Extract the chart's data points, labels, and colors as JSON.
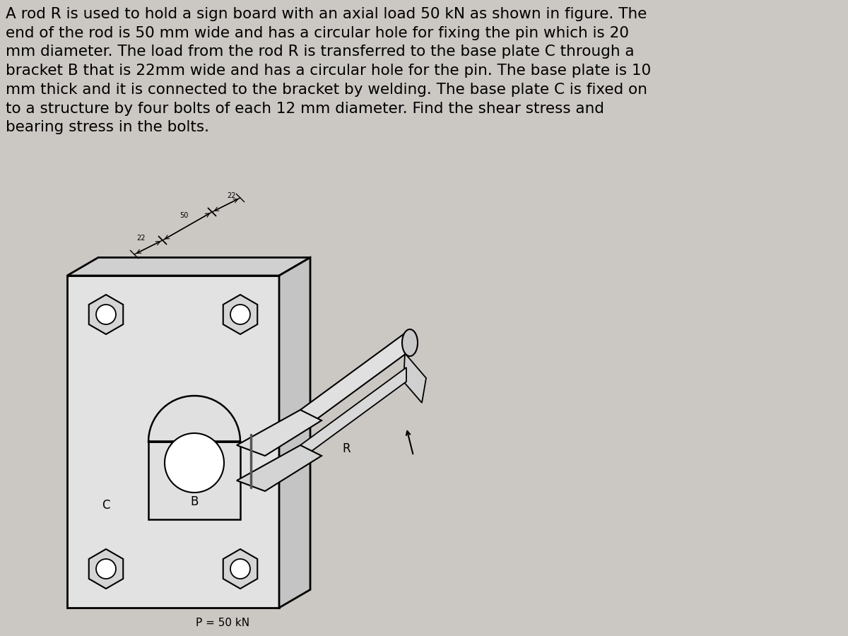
{
  "background_color": "#cbc7c2",
  "text_color": "#000000",
  "title_text": "A rod R is used to hold a sign board with an axial load 50 kN as shown in figure. The\nend of the rod is 50 mm wide and has a circular hole for fixing the pin which is 20\nmm diameter. The load from the rod R is transferred to the base plate C through a\nbracket B that is 22mm wide and has a circular hole for the pin. The base plate is 10\nmm thick and it is connected to the bracket by welding. The base plate C is fixed on\nto a structure by four bolts of each 12 mm diameter. Find the shear stress and\nbearing stress in the bolts.",
  "label_P": "P = 50 kN",
  "label_C": "C",
  "label_B": "B",
  "label_R": "R",
  "dim_22a": "22",
  "dim_50": "50",
  "dim_22b": "22",
  "fig_width": 12.0,
  "fig_height": 9.0,
  "text_fontsize": 15.5,
  "label_fontsize": 11,
  "dim_fontsize": 7
}
